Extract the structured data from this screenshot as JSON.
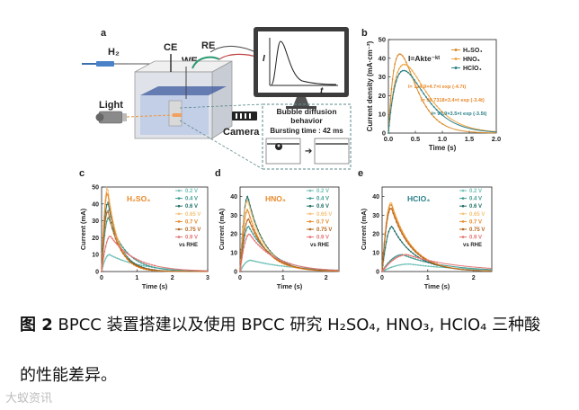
{
  "figure": {
    "panel_a": {
      "label": "a",
      "gas": "H₂",
      "electrodes": [
        "CE",
        "RE",
        "WE"
      ],
      "light": "Light",
      "camera": "Camera",
      "monitor_ylabel": "I",
      "monitor_xlabel": "t",
      "bubble_title_1": "Bubble diffusion",
      "bubble_title_2": "behavior",
      "bursting": "Bursting time : 42 ms"
    },
    "panel_b": {
      "label": "b"
    },
    "panel_c": {
      "label": "c"
    },
    "panel_d": {
      "label": "d"
    },
    "panel_e": {
      "label": "e"
    }
  },
  "caption": {
    "label": "图 2",
    "text": " BPCC 装置搭建以及使用 BPCC 研究 H₂SO₄, HNO₃, HClO₄ 三种酸",
    "text2": "的性能差异。"
  },
  "watermark": "大蚁资讯",
  "chart_data": [
    {
      "panel": "b",
      "type": "line",
      "xlabel": "Time (s)",
      "ylabel": "Current density (mA·cm⁻²)",
      "xlim": [
        0,
        2.0
      ],
      "ylim": [
        0,
        50
      ],
      "xticks": [
        "0.0",
        "0.5",
        "1.0",
        "1.5",
        "2.0"
      ],
      "yticks": [
        "0",
        "10",
        "20",
        "30",
        "40",
        "50"
      ],
      "annotation": "I=Akte⁻ᵏᵗ",
      "fits": [
        {
          "text": "I= 114.9×4.7×t exp (-4.7t)",
          "color": "#e8892a"
        },
        {
          "text": "I= 99.7318×3.4×t exp (-3.4t)",
          "color": "#e8892a"
        },
        {
          "text": "I= 90.9×3.5×t exp (-3.5t)",
          "color": "#2a7f88"
        }
      ],
      "legend": "top-right",
      "series": [
        {
          "name": "H₂SO₄",
          "color": "#d98c2b",
          "A": 114.9,
          "k": 4.7
        },
        {
          "name": "HNO₃",
          "color": "#f0a545",
          "A": 99.7318,
          "k": 3.4
        },
        {
          "name": "HClO₄",
          "color": "#2a7f88",
          "A": 90.9,
          "k": 3.5
        }
      ]
    },
    {
      "panel": "c",
      "type": "line",
      "title": "H₂SO₄",
      "title_color": "#e8892a",
      "xlabel": "Time (s)",
      "ylabel": "Current (mA)",
      "xlim": [
        0,
        3
      ],
      "ylim": [
        0,
        50
      ],
      "xticks": [
        "0",
        "1",
        "2",
        "3"
      ],
      "yticks": [
        "0",
        "10",
        "20",
        "30",
        "40",
        "50"
      ],
      "legend_suffix": "vs RHE",
      "legend": "top-right",
      "series": [
        {
          "name": "0.2 V",
          "color": "#6fc0b6",
          "peak": 10,
          "tpeak": 0.22,
          "tail": 0.9
        },
        {
          "name": "0.4 V",
          "color": "#3d9a90",
          "peak": 32,
          "tpeak": 0.2,
          "tail": 0.5
        },
        {
          "name": "0.6 V",
          "color": "#1f6f66",
          "peak": 41,
          "tpeak": 0.18,
          "tail": 0.35
        },
        {
          "name": "0.65 V",
          "color": "#f4c27a",
          "peak": 50,
          "tpeak": 0.17,
          "tail": 0.3
        },
        {
          "name": "0.7 V",
          "color": "#e8892a",
          "peak": 47,
          "tpeak": 0.17,
          "tail": 0.3
        },
        {
          "name": "0.75 V",
          "color": "#b5651d",
          "peak": 36,
          "tpeak": 0.18,
          "tail": 0.35
        },
        {
          "name": "0.9 V",
          "color": "#e57373",
          "peak": 21,
          "tpeak": 0.25,
          "tail": 0.7
        }
      ]
    },
    {
      "panel": "d",
      "type": "line",
      "title": "HNO₃",
      "title_color": "#e8892a",
      "xlabel": "Time (s)",
      "ylabel": "Current (mA)",
      "xlim": [
        0,
        2.3
      ],
      "ylim": [
        0,
        45
      ],
      "xticks": [
        "0",
        "1",
        "2"
      ],
      "yticks": [
        "0",
        "10",
        "20",
        "30",
        "40"
      ],
      "legend_suffix": "vs RHE",
      "legend": "top-right",
      "series": [
        {
          "name": "0.2 V",
          "color": "#6fc0b6",
          "peak": 6,
          "tpeak": 0.25,
          "tail": 1.0
        },
        {
          "name": "0.4 V",
          "color": "#3d9a90",
          "peak": 24,
          "tpeak": 0.2,
          "tail": 0.55
        },
        {
          "name": "0.6 V",
          "color": "#1f6f66",
          "peak": 40,
          "tpeak": 0.18,
          "tail": 0.4
        },
        {
          "name": "0.65 V",
          "color": "#f4c27a",
          "peak": 38,
          "tpeak": 0.18,
          "tail": 0.4
        },
        {
          "name": "0.7 V",
          "color": "#e8892a",
          "peak": 33,
          "tpeak": 0.18,
          "tail": 0.4
        },
        {
          "name": "0.75 V",
          "color": "#b5651d",
          "peak": 28,
          "tpeak": 0.2,
          "tail": 0.45
        },
        {
          "name": "0.9 V",
          "color": "#e57373",
          "peak": 20,
          "tpeak": 0.22,
          "tail": 0.6
        }
      ]
    },
    {
      "panel": "e",
      "type": "line",
      "title": "HClO₄",
      "title_color": "#2a7f88",
      "xlabel": "Time (s)",
      "ylabel": "Current (mA)",
      "xlim": [
        0,
        2.4
      ],
      "ylim": [
        0,
        45
      ],
      "xticks": [
        "0",
        "1",
        "2"
      ],
      "yticks": [
        "0",
        "10",
        "20",
        "30",
        "40"
      ],
      "legend_suffix": "vs RHE",
      "legend": "top-right",
      "series": [
        {
          "name": "0.2 V",
          "color": "#6fc0b6",
          "peak": 4,
          "tpeak": 0.6,
          "tail": 1.2
        },
        {
          "name": "0.4 V",
          "color": "#3d9a90",
          "peak": 9,
          "tpeak": 0.45,
          "tail": 0.9
        },
        {
          "name": "0.6 V",
          "color": "#1f6f66",
          "peak": 24,
          "tpeak": 0.22,
          "tail": 0.5
        },
        {
          "name": "0.65 V",
          "color": "#f4c27a",
          "peak": 37,
          "tpeak": 0.2,
          "tail": 0.45
        },
        {
          "name": "0.7 V",
          "color": "#e8892a",
          "peak": 36,
          "tpeak": 0.2,
          "tail": 0.45
        },
        {
          "name": "0.75 V",
          "color": "#b5651d",
          "peak": 34,
          "tpeak": 0.2,
          "tail": 0.45
        },
        {
          "name": "0.9 V",
          "color": "#e57373",
          "peak": 9,
          "tpeak": 0.55,
          "tail": 1.1
        }
      ]
    }
  ]
}
